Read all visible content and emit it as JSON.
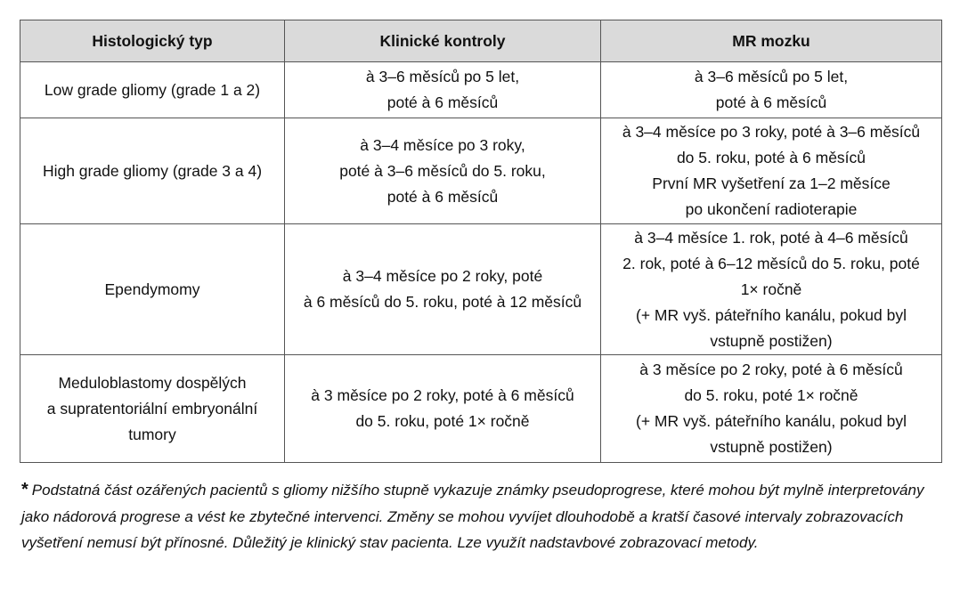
{
  "table": {
    "headers": [
      "Histologický typ",
      "Klinické kontroly",
      "MR mozku"
    ],
    "rows": [
      {
        "type": [
          "Low grade gliomy (grade 1 a 2)"
        ],
        "clinical": [
          "à 3–6 měsíců po 5 let,",
          "poté à 6 měsíců"
        ],
        "mr": [
          "à 3–6 měsíců po 5 let,",
          "poté à 6 měsíců"
        ]
      },
      {
        "type": [
          "High grade gliomy (grade 3 a 4)"
        ],
        "clinical": [
          "à 3–4 měsíce po 3 roky,",
          "poté à 3–6 měsíců do 5. roku,",
          "poté à 6 měsíců"
        ],
        "mr": [
          "à 3–4 měsíce po 3 roky, poté à 3–6 měsíců",
          "do 5. roku, poté  à 6 měsíců",
          "První MR vyšetření za 1–2 měsíce",
          "po ukončení radioterapie"
        ]
      },
      {
        "type": [
          "Ependymomy"
        ],
        "clinical": [
          "à 3–4 měsíce po 2 roky, poté",
          "à 6 měsíců do 5. roku, poté à 12 měsíců"
        ],
        "mr": [
          "à 3–4 měsíce 1. rok, poté à 4–6 měsíců",
          "2. rok, poté à 6–12 měsíců do 5. roku, poté",
          "1× ročně",
          "(+ MR vyš. páteřního kanálu, pokud byl",
          "vstupně postižen)"
        ]
      },
      {
        "type": [
          "Meduloblastomy dospělých",
          "a supratentoriální embryonální",
          "tumory"
        ],
        "clinical": [
          "à 3 měsíce po 2 roky, poté à 6 měsíců",
          "do 5. roku, poté 1× ročně"
        ],
        "mr": [
          "à 3 měsíce po 2 roky, poté à 6 měsíců",
          "do 5. roku, poté 1× ročně",
          "(+ MR vyš. páteřního kanálu, pokud byl",
          "vstupně postižen)"
        ]
      }
    ]
  },
  "footnote": {
    "marker": "*",
    "text": "Podstatná část ozářených pacientů s gliomy nižšího stupně vykazuje známky pseudoprogrese, které mohou být mylně interpretovány jako nádorová progrese a vést ke zbytečné intervenci. Změny se mohou vyvíjet dlouhodobě a kratší časové intervaly zobrazovacích vyšetření nemusí být přínosné. Důležitý je klinický stav pacienta. Lze využít nadstavbové zobrazovací metody."
  }
}
